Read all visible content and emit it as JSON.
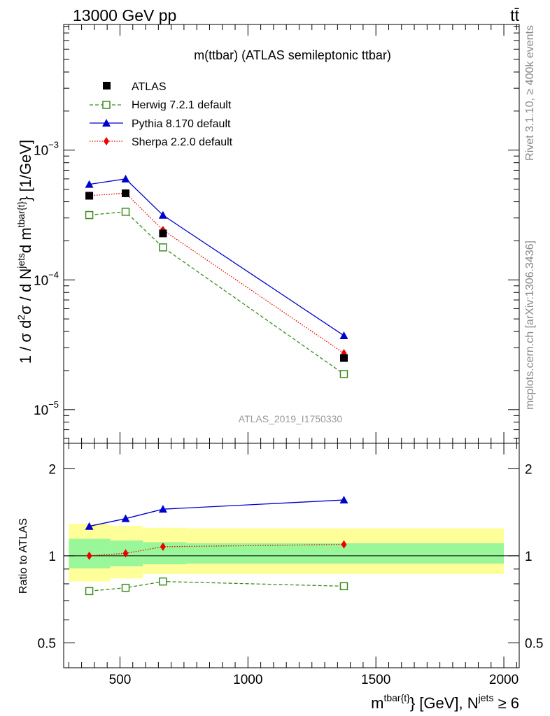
{
  "header": {
    "energy_label": "13000 GeV pp",
    "process_label": "tt̄"
  },
  "side_labels": {
    "rivet": "Rivet 3.1.10, ≥ 400k events",
    "mcplots": "mcplots.cern.ch [arXiv:1306.3436]"
  },
  "watermark": "ATLAS_2019_I1750330",
  "chart_data": [
    {
      "type": "line",
      "title": "m(ttbar) (ATLAS semileptonic ttbar)",
      "ylabel": "1 / σ d²σ / d Nʲᵉᵗˢ d mᵗᵇᵃʳ⁽ᵗ⁾ [1/GeV]",
      "ylabel_parts": [
        "1 / σ d",
        "2",
        "σ / d N",
        "jets",
        "d m",
        "tbar{t}",
        "} [1/GeV]"
      ],
      "yscale": "log",
      "ylim": [
        5.5e-06,
        0.0093
      ],
      "xlim": [
        280,
        2060
      ],
      "yticks": [
        {
          "value": 1e-05,
          "base": "10",
          "exp": "−5"
        },
        {
          "value": 0.0001,
          "base": "10",
          "exp": "−4"
        },
        {
          "value": 0.001,
          "base": "10",
          "exp": "−3"
        }
      ],
      "series": [
        {
          "name": "ATLAS",
          "style": "data",
          "color": "#000000",
          "x": [
            380,
            522,
            668,
            1375
          ],
          "y": [
            0.000445,
            0.000465,
            0.000228,
            2.5e-05
          ]
        },
        {
          "name": "Herwig 7.2.1 default",
          "style": "herwig",
          "color": "#3c8c1e",
          "x": [
            380,
            522,
            668,
            1375
          ],
          "y": [
            0.000316,
            0.000335,
            0.000178,
            1.88e-05
          ]
        },
        {
          "name": "Pythia 8.170 default",
          "style": "pythia",
          "color": "#0000cc",
          "x": [
            380,
            522,
            668,
            1375
          ],
          "y": [
            0.000545,
            0.0006,
            0.000315,
            3.72e-05
          ]
        },
        {
          "name": "Sherpa 2.2.0 default",
          "style": "sherpa",
          "color": "#ee0000",
          "x": [
            380,
            522,
            668,
            1375
          ],
          "y": [
            0.000446,
            0.000466,
            0.000242,
            2.72e-05
          ]
        }
      ]
    },
    {
      "type": "line",
      "ylabel": "Ratio to ATLAS",
      "xlabel_parts": [
        "m",
        "tbar{t}",
        "} [GeV], N",
        "jets",
        " ≥ 6"
      ],
      "yscale": "log",
      "ylim": [
        0.41,
        2.45
      ],
      "xlim": [
        280,
        2060
      ],
      "xticks": [
        500,
        1000,
        1500,
        2000
      ],
      "yticks": [
        {
          "value": 0.5,
          "label": "0.5"
        },
        {
          "value": 1,
          "label": "1"
        },
        {
          "value": 2,
          "label": "2"
        }
      ],
      "bins": [
        {
          "lo": 300,
          "hi": 462,
          "stat_lo": 0.905,
          "stat_hi": 1.145,
          "tot_lo": 0.815,
          "tot_hi": 1.29
        },
        {
          "lo": 462,
          "hi": 590,
          "stat_lo": 0.92,
          "stat_hi": 1.13,
          "tot_lo": 0.835,
          "tot_hi": 1.27
        },
        {
          "lo": 590,
          "hi": 760,
          "stat_lo": 0.935,
          "stat_hi": 1.115,
          "tot_lo": 0.865,
          "tot_hi": 1.25
        },
        {
          "lo": 760,
          "hi": 2000,
          "stat_lo": 0.94,
          "stat_hi": 1.105,
          "tot_lo": 0.865,
          "tot_hi": 1.245
        }
      ],
      "series": [
        {
          "name": "Herwig 7.2.1 default",
          "style": "herwig",
          "color": "#3c8c1e",
          "x": [
            380,
            522,
            668,
            1375
          ],
          "y": [
            0.755,
            0.775,
            0.815,
            0.785
          ]
        },
        {
          "name": "Pythia 8.170 default",
          "style": "pythia",
          "color": "#0000cc",
          "x": [
            380,
            522,
            668,
            1375
          ],
          "y": [
            1.265,
            1.345,
            1.45,
            1.56
          ]
        },
        {
          "name": "Sherpa 2.2.0 default",
          "style": "sherpa",
          "color": "#ee0000",
          "x": [
            380,
            522,
            668,
            1375
          ],
          "y": [
            1.0,
            1.02,
            1.075,
            1.095
          ]
        }
      ],
      "band_colors": {
        "stat": "#99f799",
        "total": "#ffff99"
      }
    }
  ]
}
